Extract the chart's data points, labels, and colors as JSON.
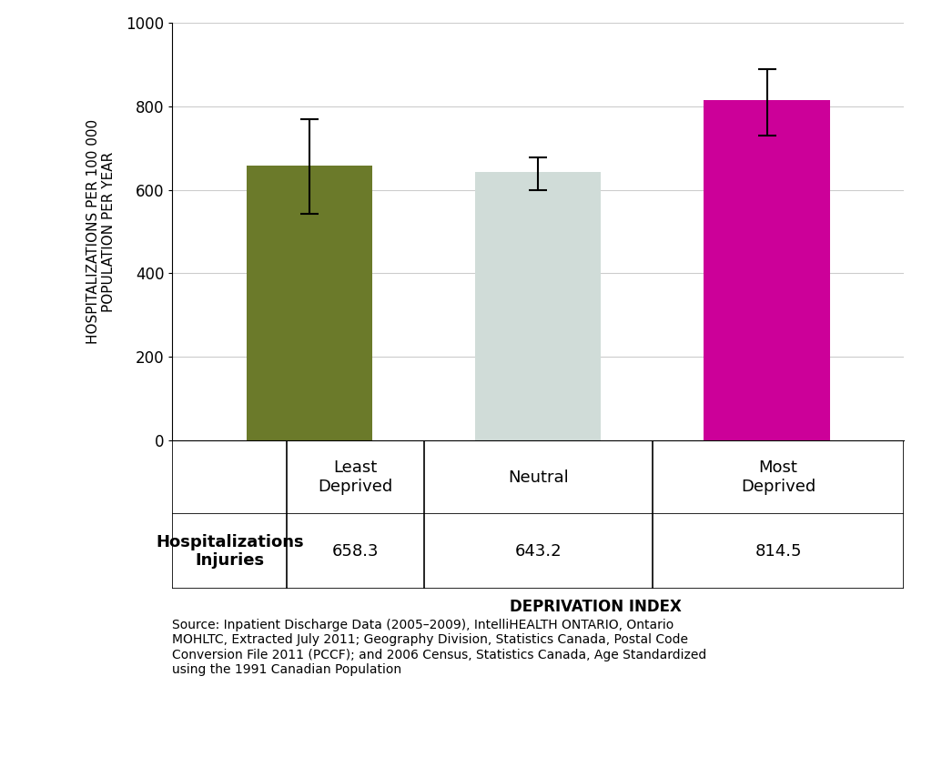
{
  "categories": [
    "Least\nDeprived",
    "Neutral",
    "Most\nDeprived"
  ],
  "values": [
    658.3,
    643.2,
    814.5
  ],
  "errors_upper": [
    110,
    35,
    75
  ],
  "errors_lower": [
    115,
    45,
    85
  ],
  "bar_colors": [
    "#6b7a2a",
    "#d0dcd8",
    "#cc0099"
  ],
  "ylabel": "HOSPITALIZATIONS PER 100 000\nPOPULATION PER YEAR",
  "xlabel": "DEPRIVATION INDEX",
  "ylim": [
    0,
    1000
  ],
  "yticks": [
    0,
    200,
    400,
    600,
    800,
    1000
  ],
  "background_color": "#ffffff",
  "grid_color": "#cccccc",
  "table_row_label": "Hospitalizations\nInjuries",
  "table_values": [
    "658.3",
    "643.2",
    "814.5"
  ],
  "source_text": "Source: Inpatient Discharge Data (2005–2009), IntelliHEALTH ONTARIO, Ontario\nMOHLTC, Extracted July 2011; Geography Division, Statistics Canada, Postal Code\nConversion File 2011 (PCCF); and 2006 Census, Statistics Canada, Age Standardized\nusing the 1991 Canadian Population"
}
